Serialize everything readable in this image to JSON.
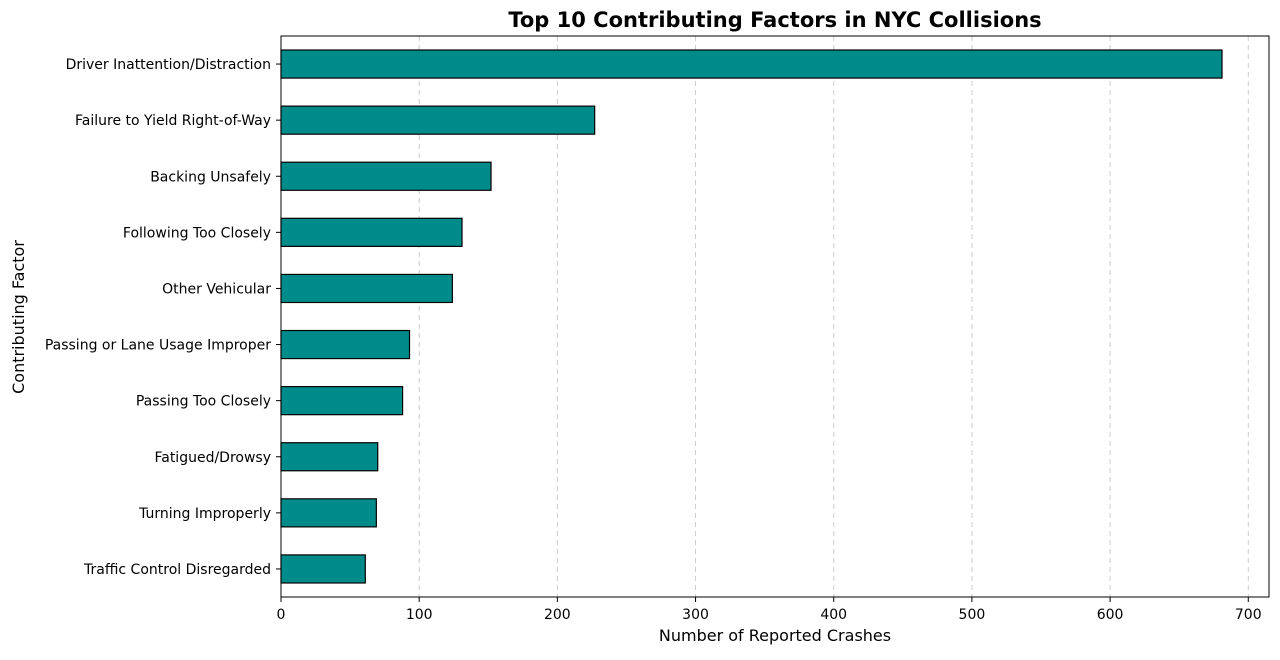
{
  "chart_data": {
    "type": "bar",
    "orientation": "horizontal",
    "title": "Top 10 Contributing Factors in NYC Collisions",
    "xlabel": "Number of Reported Crashes",
    "ylabel": "Contributing Factor",
    "xlim": [
      0,
      715
    ],
    "xticks": [
      0,
      100,
      200,
      300,
      400,
      500,
      600,
      700
    ],
    "grid": "x-axis dashed",
    "legend": "none",
    "bar_color": "#008b8b",
    "bar_edge_color": "#000000",
    "categories": [
      "Driver Inattention/Distraction",
      "Failure to Yield Right-of-Way",
      "Backing Unsafely",
      "Following Too Closely",
      "Other Vehicular",
      "Passing or Lane Usage Improper",
      "Passing Too Closely",
      "Fatigued/Drowsy",
      "Turning Improperly",
      "Traffic Control Disregarded"
    ],
    "values": [
      681,
      227,
      152,
      131,
      124,
      93,
      88,
      70,
      69,
      61
    ]
  }
}
